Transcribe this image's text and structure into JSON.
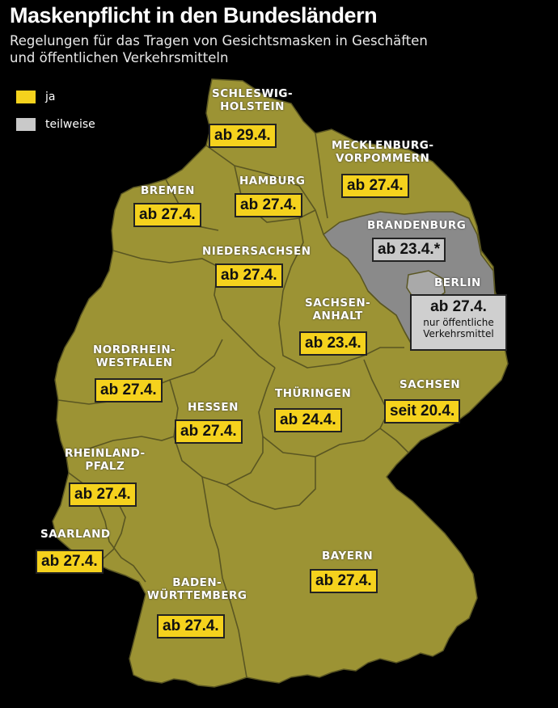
{
  "title": "Maskenpflicht in den Bundesländern",
  "subtitle_line1": "Regelungen für das Tragen von Gesichtsmasken in Geschäften",
  "subtitle_line2": "und öffentlichen Verkehrsmitteln",
  "legend": {
    "yes_label": "ja",
    "partial_label": "teilweise",
    "yes_color": "#f5d21d",
    "partial_color": "#c9c9c9"
  },
  "colors": {
    "land": "#9c9334",
    "partial_land": "#8a8a8a",
    "border": "#5a5622"
  },
  "states": {
    "schleswig_holstein": {
      "name_line1": "SCHLESWIG-",
      "name_line2": "HOLSTEIN",
      "date": "ab 29.4."
    },
    "mecklenburg": {
      "name_line1": "MECKLENBURG-",
      "name_line2": "VORPOMMERN",
      "date": "ab 27.4."
    },
    "hamburg": {
      "name": "HAMBURG",
      "date": "ab 27.4."
    },
    "bremen": {
      "name": "BREMEN",
      "date": "ab 27.4."
    },
    "brandenburg": {
      "name": "BRANDENBURG",
      "date": "ab 23.4.*"
    },
    "niedersachsen": {
      "name": "NIEDERSACHSEN",
      "date": "ab 27.4."
    },
    "berlin": {
      "name": "BERLIN",
      "date": "ab 27.4.",
      "note_line1": "nur öffentliche",
      "note_line2": "Verkehrsmittel"
    },
    "sachsen_anhalt": {
      "name_line1": "SACHSEN-",
      "name_line2": "ANHALT",
      "date": "ab 23.4."
    },
    "nordrhein_westfalen": {
      "name_line1": "NORDRHEIN-",
      "name_line2": "WESTFALEN",
      "date": "ab 27.4."
    },
    "sachsen": {
      "name": "SACHSEN",
      "date": "seit 20.4."
    },
    "thueringen": {
      "name": "THÜRINGEN",
      "date": "ab 24.4."
    },
    "hessen": {
      "name": "HESSEN",
      "date": "ab 27.4."
    },
    "rheinland_pfalz": {
      "name_line1": "RHEINLAND-",
      "name_line2": "PFALZ",
      "date": "ab 27.4."
    },
    "saarland": {
      "name": "SAARLAND",
      "date": "ab 27.4."
    },
    "bayern": {
      "name": "BAYERN",
      "date": "ab 27.4."
    },
    "baden_wuerttemberg": {
      "name_line1": "BADEN-",
      "name_line2": "WÜRTTEMBERG",
      "date": "ab 27.4."
    }
  }
}
